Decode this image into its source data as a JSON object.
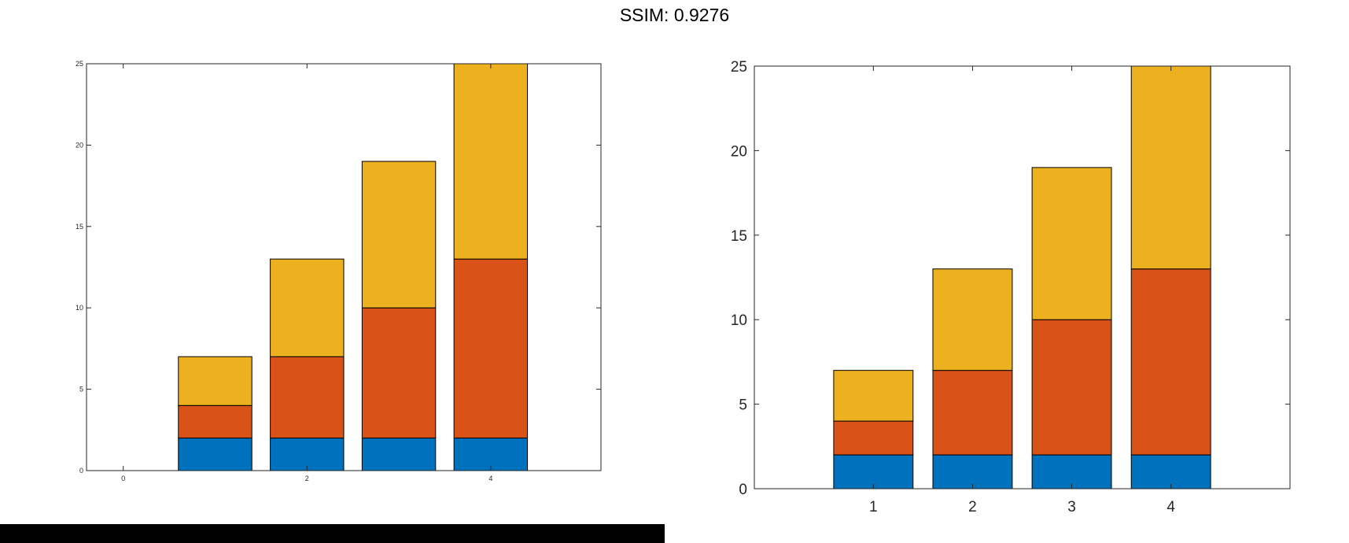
{
  "title": "SSIM: 0.9276",
  "colors": {
    "series": [
      "#0072BD",
      "#D95319",
      "#EDB120"
    ],
    "axis": "#262626"
  },
  "chart_data": [
    {
      "type": "bar",
      "stacked": true,
      "x": [
        1,
        2,
        3,
        4
      ],
      "series": [
        {
          "values": [
            2,
            2,
            2,
            2
          ]
        },
        {
          "values": [
            2,
            5,
            8,
            11
          ]
        },
        {
          "values": [
            3,
            6,
            9,
            12
          ]
        }
      ],
      "xlim": [
        -0.4,
        5.2
      ],
      "ylim": [
        0,
        25
      ],
      "xticks": [
        "0",
        "2",
        "4"
      ],
      "xtick_values": [
        0,
        2,
        4
      ],
      "yticks": [
        "0",
        "5",
        "10",
        "15",
        "20",
        "25"
      ],
      "ytick_values": [
        0,
        5,
        10,
        15,
        20,
        25
      ],
      "bar_width": 0.8,
      "grid": false
    },
    {
      "type": "bar",
      "stacked": true,
      "x": [
        1,
        2,
        3,
        4
      ],
      "series": [
        {
          "values": [
            2,
            2,
            2,
            2
          ]
        },
        {
          "values": [
            2,
            5,
            8,
            11
          ]
        },
        {
          "values": [
            3,
            6,
            9,
            12
          ]
        }
      ],
      "xlim": [
        -0.2,
        5.2
      ],
      "ylim": [
        0,
        25
      ],
      "xticks": [
        "1",
        "2",
        "3",
        "4"
      ],
      "xtick_values": [
        1,
        2,
        3,
        4
      ],
      "yticks": [
        "0",
        "5",
        "10",
        "15",
        "20",
        "25"
      ],
      "ytick_values": [
        0,
        5,
        10,
        15,
        20,
        25
      ],
      "bar_width": 0.8,
      "grid": false
    }
  ]
}
